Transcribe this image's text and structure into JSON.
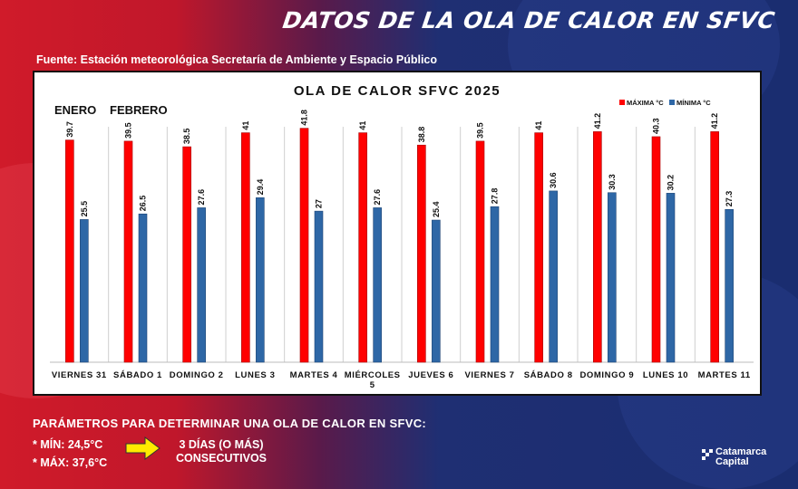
{
  "header": {
    "title": "DATOS DE LA OLA DE CALOR EN SFVC",
    "source": "Fuente: Estación meteorológica Secretaría de Ambiente y Espacio Público"
  },
  "chart_data": {
    "type": "bar",
    "title": "OLA DE CALOR SFVC 2025",
    "month_labels": [
      "ENERO",
      "FEBRERO"
    ],
    "categories": [
      "VIERNES 31",
      "SÁBADO 1",
      "DOMINGO 2",
      "LUNES 3",
      "MARTES 4",
      "MIÉRCOLES 5",
      "JUEVES 6",
      "VIERNES 7",
      "SÁBADO 8",
      "DOMINGO 9",
      "LUNES 10",
      "MARTES 11"
    ],
    "series": [
      {
        "name": "MÁXIMA °C",
        "color": "#ff0000",
        "values": [
          39.7,
          39.5,
          38.5,
          41,
          41.8,
          41,
          38.8,
          39.5,
          41,
          41.2,
          40.3,
          41.2
        ]
      },
      {
        "name": "MÍNIMA °C",
        "color": "#2e67a6",
        "values": [
          25.5,
          26.5,
          27.6,
          29.4,
          27,
          27.6,
          25.4,
          27.8,
          30.6,
          30.3,
          30.2,
          27.3
        ]
      }
    ],
    "ylim": [
      0,
      45
    ],
    "legend_position": "top-right",
    "grid": false
  },
  "params": {
    "title": "PARÁMETROS PARA DETERMINAR UNA OLA DE CALOR EN SFVC:",
    "min": "* MÍN: 24,5°C",
    "max": "* MÁX: 37,6°C",
    "rule_line1": "3 DÍAS (O MÁS)",
    "rule_line2": "CONSECUTIVOS",
    "arrow_icon": "right-arrow-icon",
    "arrow_color": "#ffea00"
  },
  "logo": {
    "line1": "Catamarca",
    "line2": "Capital"
  }
}
